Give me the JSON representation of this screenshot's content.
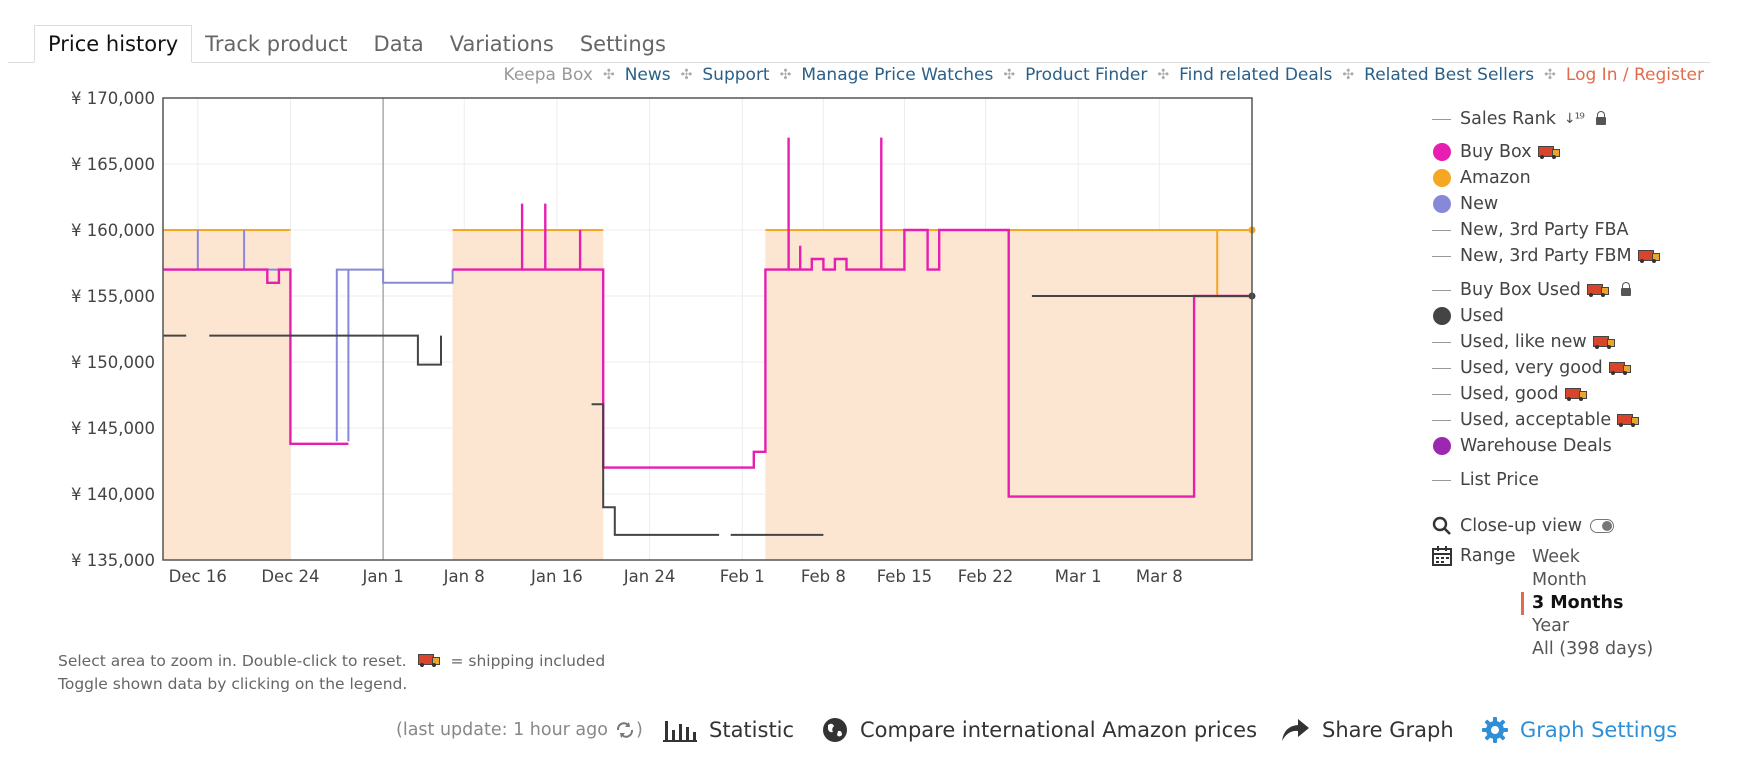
{
  "tabs": [
    "Price history",
    "Track product",
    "Data",
    "Variations",
    "Settings"
  ],
  "toplinks": [
    {
      "label": "Keepa Box",
      "style": "gray"
    },
    {
      "label": "News",
      "style": "link"
    },
    {
      "label": "Support",
      "style": "link"
    },
    {
      "label": "Manage Price Watches",
      "style": "link"
    },
    {
      "label": "Product Finder",
      "style": "link"
    },
    {
      "label": "Find related Deals",
      "style": "link"
    },
    {
      "label": "Related Best Sellers",
      "style": "link"
    },
    {
      "label": "Log In / Register",
      "style": "login"
    }
  ],
  "legend": {
    "sales_rank": "Sales Rank",
    "buy_box": "Buy Box",
    "amazon": "Amazon",
    "new": "New",
    "new_fba": "New, 3rd Party FBA",
    "new_fbm": "New, 3rd Party FBM",
    "buy_box_used": "Buy Box Used",
    "used": "Used",
    "used_like_new": "Used, like new",
    "used_very_good": "Used, very good",
    "used_good": "Used, good",
    "used_acceptable": "Used, acceptable",
    "warehouse": "Warehouse Deals",
    "list_price": "List Price",
    "closeup": "Close-up view",
    "range": "Range"
  },
  "ranges": {
    "week": "Week",
    "month": "Month",
    "three_months": "3 Months",
    "year": "Year",
    "all": "All (398 days)"
  },
  "hints": {
    "line1": "Select area to zoom in. Double-click to reset.",
    "shipping": "= shipping included",
    "line2": "Toggle shown data by clicking on the legend."
  },
  "footer": {
    "last_update": "(last update: 1 hour ago",
    "last_update_end": ")",
    "statistic": "Statistic",
    "compare": "Compare international Amazon prices",
    "share": "Share Graph",
    "graph_settings": "Graph Settings"
  },
  "colors": {
    "buy_box": "#e61fb0",
    "amazon": "#f5a623",
    "amazon_fill": "#fde6d1",
    "new": "#8888d8",
    "used": "#444444",
    "warehouse": "#9c27b0",
    "link": "#2a5f88",
    "login": "#e06c4c",
    "accent": "#2f8fd6"
  },
  "chart_data": {
    "type": "line",
    "currency": "¥",
    "ylim": [
      135000,
      170000
    ],
    "yticks": [
      135000,
      140000,
      145000,
      150000,
      155000,
      160000,
      165000,
      170000
    ],
    "ytick_labels": [
      "¥ 135,000",
      "¥ 140,000",
      "¥ 145,000",
      "¥ 150,000",
      "¥ 155,000",
      "¥ 160,000",
      "¥ 165,000",
      "¥ 170,000"
    ],
    "xlim": [
      "2023-12-13",
      "2024-03-16"
    ],
    "xticks": [
      {
        "date": "2023-12-16",
        "label": "Dec 16"
      },
      {
        "date": "2023-12-24",
        "label": "Dec 24"
      },
      {
        "date": "2024-01-01",
        "label": "Jan 1"
      },
      {
        "date": "2024-01-08",
        "label": "Jan 8"
      },
      {
        "date": "2024-01-16",
        "label": "Jan 16"
      },
      {
        "date": "2024-01-24",
        "label": "Jan 24"
      },
      {
        "date": "2024-02-01",
        "label": "Feb 1"
      },
      {
        "date": "2024-02-08",
        "label": "Feb 8"
      },
      {
        "date": "2024-02-15",
        "label": "Feb 15"
      },
      {
        "date": "2024-02-22",
        "label": "Feb 22"
      },
      {
        "date": "2024-03-01",
        "label": "Mar 1"
      },
      {
        "date": "2024-03-08",
        "label": "Mar 8"
      }
    ],
    "grid": true,
    "series": [
      {
        "name": "Amazon",
        "key": "amazon",
        "step": true,
        "fill": true,
        "points": [
          [
            "2023-12-13",
            160000
          ],
          [
            "2023-12-24",
            160000
          ],
          [
            "2023-12-24",
            null
          ],
          [
            "2024-01-07",
            160000
          ],
          [
            "2024-01-20",
            160000
          ],
          [
            "2024-01-20",
            null
          ],
          [
            "2024-02-03",
            160000
          ],
          [
            "2024-03-13",
            160000
          ],
          [
            "2024-03-13",
            155000
          ],
          [
            "2024-03-13",
            160000
          ],
          [
            "2024-03-16",
            160000
          ]
        ]
      },
      {
        "name": "New",
        "key": "new",
        "step": true,
        "points": [
          [
            "2023-12-13",
            157000
          ],
          [
            "2023-12-16",
            157000
          ],
          [
            "2023-12-16",
            160000
          ],
          [
            "2023-12-16",
            157000
          ],
          [
            "2023-12-20",
            157000
          ],
          [
            "2023-12-20",
            160000
          ],
          [
            "2023-12-20",
            157000
          ],
          [
            "2023-12-24",
            157000
          ],
          [
            "2023-12-24",
            null
          ],
          [
            "2023-12-28",
            157000
          ],
          [
            "2023-12-28",
            144000
          ],
          [
            "2023-12-28",
            157000
          ],
          [
            "2023-12-29",
            157000
          ],
          [
            "2023-12-29",
            144000
          ],
          [
            "2023-12-29",
            156000
          ],
          [
            "2023-12-29",
            157000
          ],
          [
            "2024-01-01",
            157000
          ],
          [
            "2024-01-01",
            156000
          ],
          [
            "2024-01-07",
            156000
          ],
          [
            "2024-01-07",
            157000
          ]
        ]
      },
      {
        "name": "Buy Box",
        "key": "buy_box",
        "step": true,
        "points": [
          [
            "2023-12-13",
            157000
          ],
          [
            "2023-12-22",
            157000
          ],
          [
            "2023-12-22",
            156000
          ],
          [
            "2023-12-23",
            156000
          ],
          [
            "2023-12-23",
            157000
          ],
          [
            "2023-12-24",
            157000
          ],
          [
            "2023-12-24",
            143800
          ],
          [
            "2023-12-29",
            143800
          ],
          [
            "2023-12-29",
            null
          ],
          [
            "2024-01-07",
            157000
          ],
          [
            "2024-01-13",
            157000
          ],
          [
            "2024-01-13",
            162000
          ],
          [
            "2024-01-13",
            157000
          ],
          [
            "2024-01-15",
            157000
          ],
          [
            "2024-01-15",
            162000
          ],
          [
            "2024-01-15",
            157000
          ],
          [
            "2024-01-18",
            157000
          ],
          [
            "2024-01-18",
            160000
          ],
          [
            "2024-01-18",
            157000
          ],
          [
            "2024-01-20",
            157000
          ],
          [
            "2024-01-20",
            142000
          ],
          [
            "2024-02-02",
            142000
          ],
          [
            "2024-02-02",
            143200
          ],
          [
            "2024-02-03",
            143200
          ],
          [
            "2024-02-03",
            157000
          ],
          [
            "2024-02-05",
            157000
          ],
          [
            "2024-02-05",
            167000
          ],
          [
            "2024-02-05",
            157000
          ],
          [
            "2024-02-06",
            157000
          ],
          [
            "2024-02-06",
            158800
          ],
          [
            "2024-02-06",
            157000
          ],
          [
            "2024-02-07",
            157000
          ],
          [
            "2024-02-07",
            157800
          ],
          [
            "2024-02-08",
            157800
          ],
          [
            "2024-02-08",
            157000
          ],
          [
            "2024-02-09",
            157000
          ],
          [
            "2024-02-09",
            157800
          ],
          [
            "2024-02-10",
            157800
          ],
          [
            "2024-02-10",
            157000
          ],
          [
            "2024-02-13",
            157000
          ],
          [
            "2024-02-13",
            167000
          ],
          [
            "2024-02-13",
            157000
          ],
          [
            "2024-02-15",
            157000
          ],
          [
            "2024-02-15",
            160000
          ],
          [
            "2024-02-17",
            160000
          ],
          [
            "2024-02-17",
            157000
          ],
          [
            "2024-02-18",
            157000
          ],
          [
            "2024-02-18",
            160000
          ],
          [
            "2024-02-24",
            160000
          ],
          [
            "2024-02-24",
            139800
          ],
          [
            "2024-03-11",
            139800
          ],
          [
            "2024-03-11",
            155000
          ],
          [
            "2024-03-16",
            155000
          ]
        ]
      },
      {
        "name": "Used",
        "key": "used",
        "step": true,
        "points": [
          [
            "2023-12-13",
            152000
          ],
          [
            "2023-12-15",
            152000
          ],
          [
            "2023-12-15",
            null
          ],
          [
            "2023-12-17",
            152000
          ],
          [
            "2024-01-04",
            152000
          ],
          [
            "2024-01-04",
            149800
          ],
          [
            "2024-01-06",
            149800
          ],
          [
            "2024-01-06",
            152000
          ],
          [
            "2024-01-06",
            null
          ],
          [
            "2024-01-19",
            146800
          ],
          [
            "2024-01-20",
            146800
          ],
          [
            "2024-01-20",
            139000
          ],
          [
            "2024-01-21",
            139000
          ],
          [
            "2024-01-21",
            136900
          ],
          [
            "2024-01-30",
            136900
          ],
          [
            "2024-01-30",
            null
          ],
          [
            "2024-01-31",
            136900
          ],
          [
            "2024-02-08",
            136900
          ],
          [
            "2024-02-08",
            null
          ],
          [
            "2024-02-26",
            155000
          ],
          [
            "2024-03-16",
            155000
          ]
        ]
      }
    ]
  }
}
